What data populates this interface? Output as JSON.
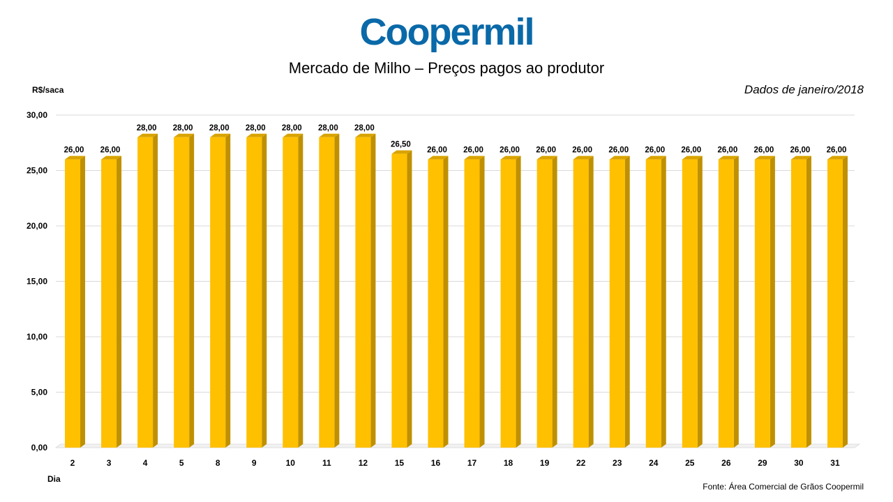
{
  "logo": {
    "text": "Coopermil"
  },
  "chart_data": {
    "type": "bar",
    "title": "Mercado de Milho – Preços pagos ao produtor",
    "subtitle": "Dados de janeiro/2018",
    "ylabel": "R$/saca",
    "xlabel": "Dia",
    "source": "Fonte:  Área Comercial de Grãos Coopermil",
    "ylim": [
      0,
      30
    ],
    "yticks": [
      "0,00",
      "5,00",
      "10,00",
      "15,00",
      "20,00",
      "25,00",
      "30,00"
    ],
    "ytick_values": [
      0,
      5,
      10,
      15,
      20,
      25,
      30
    ],
    "categories": [
      "2",
      "3",
      "4",
      "5",
      "8",
      "9",
      "10",
      "11",
      "12",
      "15",
      "16",
      "17",
      "18",
      "19",
      "22",
      "23",
      "24",
      "25",
      "26",
      "29",
      "30",
      "31"
    ],
    "values": [
      26,
      26,
      28,
      28,
      28,
      28,
      28,
      28,
      28,
      26.5,
      26,
      26,
      26,
      26,
      26,
      26,
      26,
      26,
      26,
      26,
      26,
      26
    ],
    "value_labels": [
      "26,00",
      "26,00",
      "28,00",
      "28,00",
      "28,00",
      "28,00",
      "28,00",
      "28,00",
      "28,00",
      "26,50",
      "26,00",
      "26,00",
      "26,00",
      "26,00",
      "26,00",
      "26,00",
      "26,00",
      "26,00",
      "26,00",
      "26,00",
      "26,00",
      "26,00"
    ],
    "grid": true,
    "colors": {
      "bar_front": "#ffc000",
      "bar_side": "#bf9000",
      "bar_top": "#d9a400",
      "grid": "#d9d9d9"
    }
  }
}
